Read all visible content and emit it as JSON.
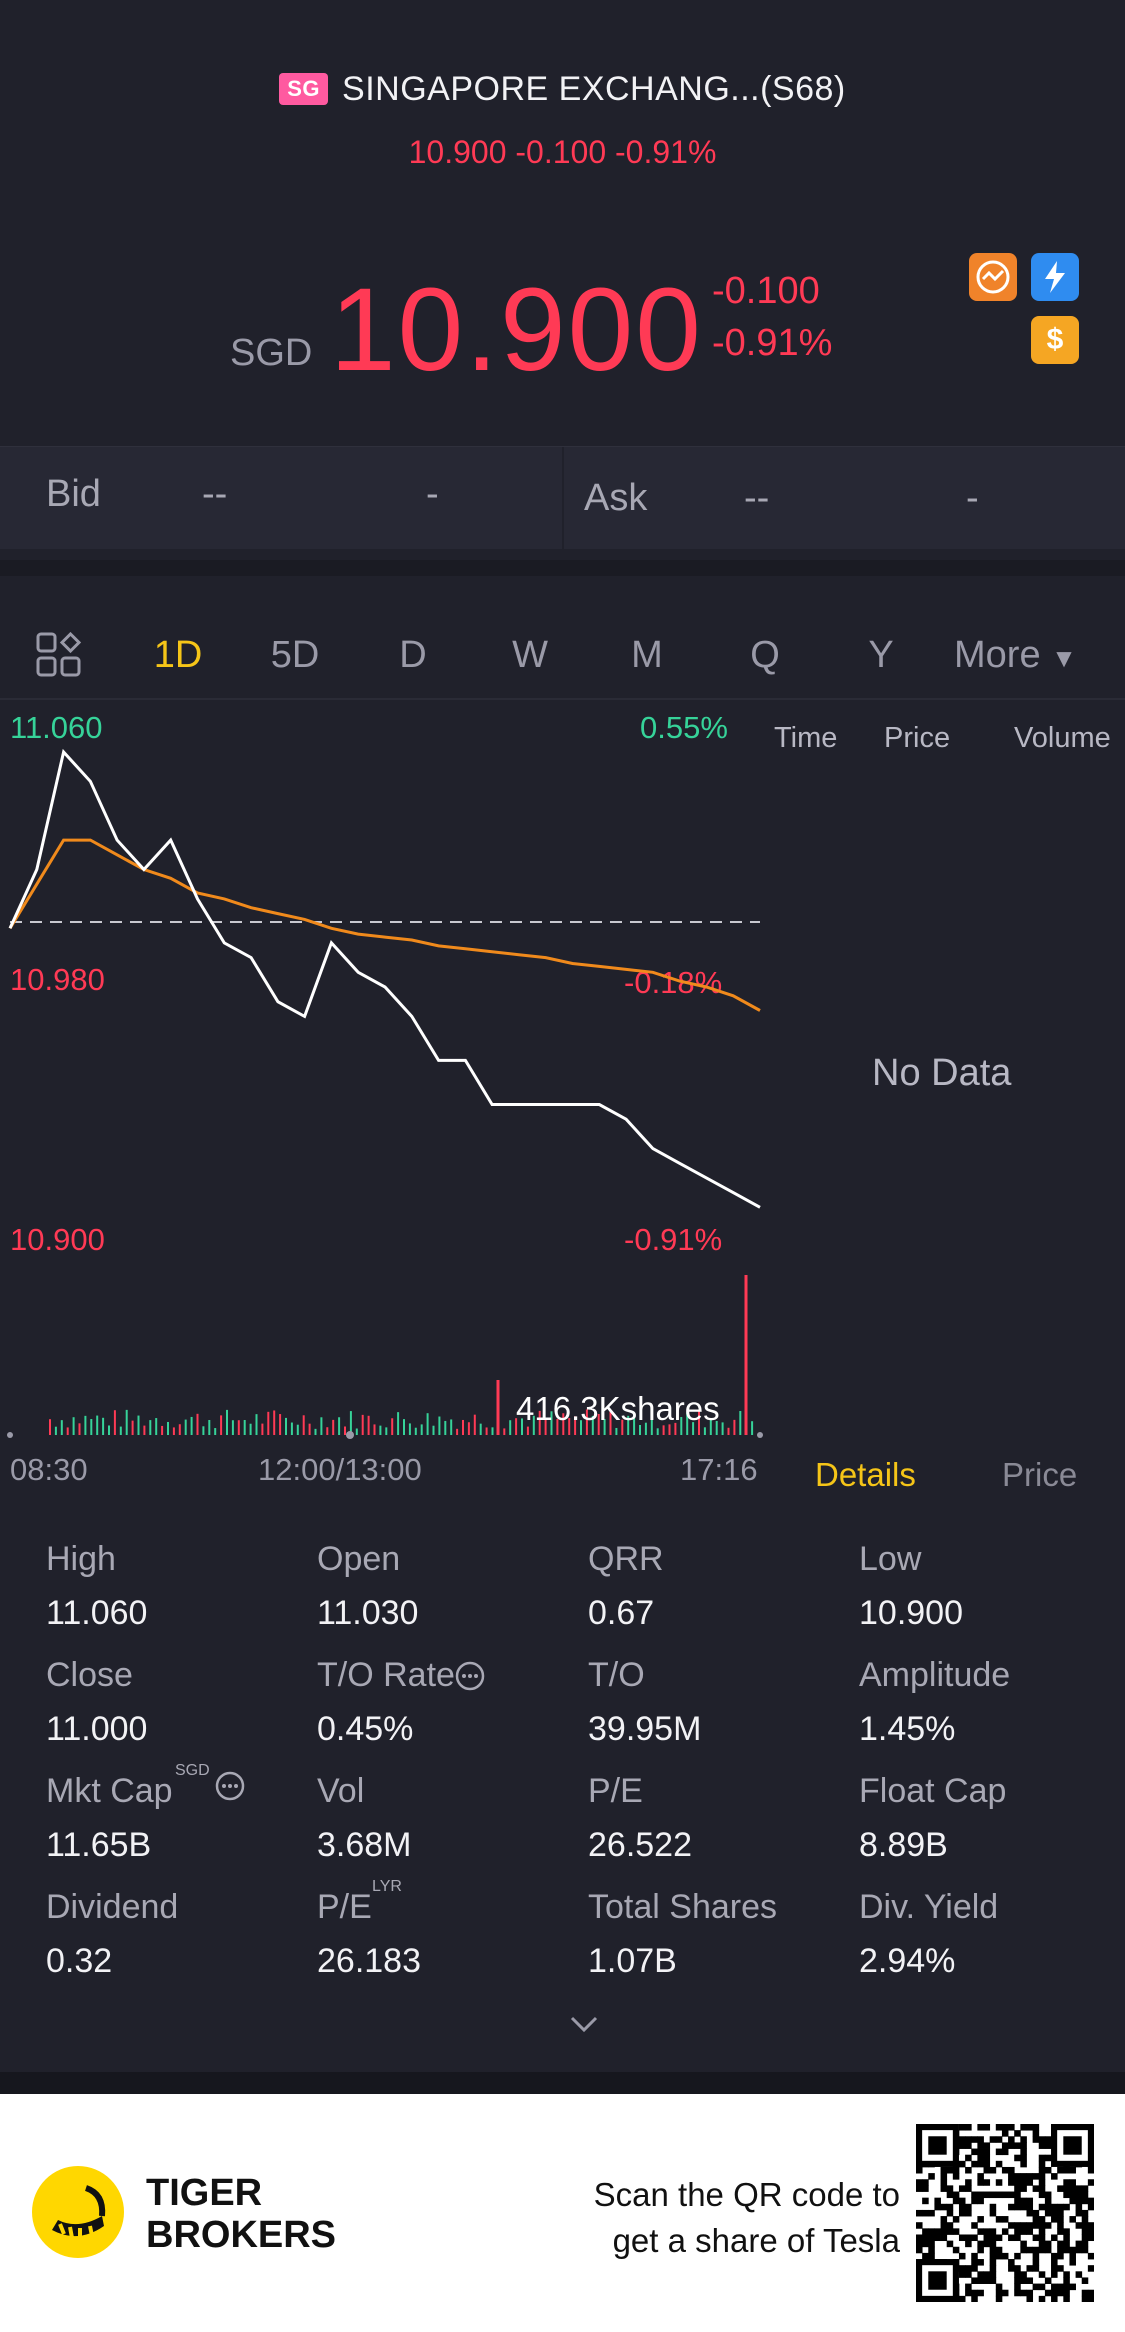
{
  "header": {
    "badge": "SG",
    "title": "SINGAPORE EXCHANG...(S68)",
    "subline": "10.900 -0.100 -0.91%"
  },
  "quote": {
    "currency": "SGD",
    "price": "10.900",
    "change": "-0.100",
    "change_pct": "-0.91%",
    "icons": [
      "swap-icon",
      "lightning-icon",
      "dollar-icon"
    ]
  },
  "bidask": {
    "bid_label": "Bid",
    "bid_price": "--",
    "bid_size": "-",
    "ask_label": "Ask",
    "ask_price": "--",
    "ask_size": "-"
  },
  "tabs": {
    "items": [
      "1D",
      "5D",
      "D",
      "W",
      "M",
      "Q",
      "Y"
    ],
    "active": "1D",
    "more": "More"
  },
  "chart": {
    "y_high": "11.060",
    "y_mid": "10.980",
    "y_low": "10.900",
    "pct_high": "0.55%",
    "pct_mid": "-0.18%",
    "pct_low": "-0.91%",
    "volume_label": "416.3Kshares",
    "x_start": "08:30",
    "x_mid": "12:00/13:00",
    "x_end": "17:16"
  },
  "chart_data": {
    "type": "line",
    "ylim": [
      10.9,
      11.06
    ],
    "previous_close": 11.0,
    "series": [
      {
        "values": [
          11.0,
          11.02,
          11.06,
          11.05,
          11.03,
          11.02,
          11.03,
          11.01,
          10.995,
          10.99,
          10.975,
          10.97,
          10.995,
          10.985,
          10.98,
          10.97,
          10.955,
          10.955,
          10.94,
          10.94,
          10.94,
          10.94,
          10.94,
          10.935,
          10.925,
          10.92,
          10.915,
          10.91,
          10.905
        ]
      },
      {
        "values": [
          11.0,
          11.015,
          11.03,
          11.03,
          11.025,
          11.02,
          11.017,
          11.012,
          11.01,
          11.007,
          11.005,
          11.003,
          11.0,
          10.998,
          10.997,
          10.996,
          10.994,
          10.993,
          10.992,
          10.991,
          10.99,
          10.988,
          10.987,
          10.986,
          10.985,
          10.982,
          10.98,
          10.977,
          10.972
        ]
      }
    ]
  },
  "tradepanel": {
    "headers": [
      "Time",
      "Price",
      "Volume"
    ],
    "empty": "No Data",
    "tabs": [
      "Details",
      "Price"
    ]
  },
  "details": [
    {
      "label": "High",
      "value": "11.060"
    },
    {
      "label": "Open",
      "value": "11.030"
    },
    {
      "label": "QRR",
      "value": "0.67"
    },
    {
      "label": "Low",
      "value": "10.900"
    },
    {
      "label": "Close",
      "value": "11.000"
    },
    {
      "label": "T/O Rate",
      "value": "0.45%"
    },
    {
      "label": "T/O",
      "value": "39.95M"
    },
    {
      "label": "Amplitude",
      "value": "1.45%"
    },
    {
      "label": "Mkt Cap",
      "value": "11.65B"
    },
    {
      "label": "Vol",
      "value": "3.68M"
    },
    {
      "label": "P/E",
      "value": "26.522"
    },
    {
      "label": "Float Cap",
      "value": "8.89B"
    },
    {
      "label": "Dividend",
      "value": "0.32"
    },
    {
      "label": "P/E",
      "value": "26.183"
    },
    {
      "label": "Total Shares",
      "value": "1.07B"
    },
    {
      "label": "Div. Yield",
      "value": "2.94%"
    }
  ],
  "details_sup": {
    "mktcap": "SGD",
    "pe_lyr": "LYR"
  },
  "footer": {
    "brand_line1": "TIGER",
    "brand_line2": "BROKERS",
    "promo_line1": "Scan the QR code to",
    "promo_line2": "get a share of Tesla"
  },
  "colors": {
    "up": "#36d399",
    "down": "#ff3a55",
    "accent": "#f5c518",
    "avg_line": "#f08a1c"
  }
}
